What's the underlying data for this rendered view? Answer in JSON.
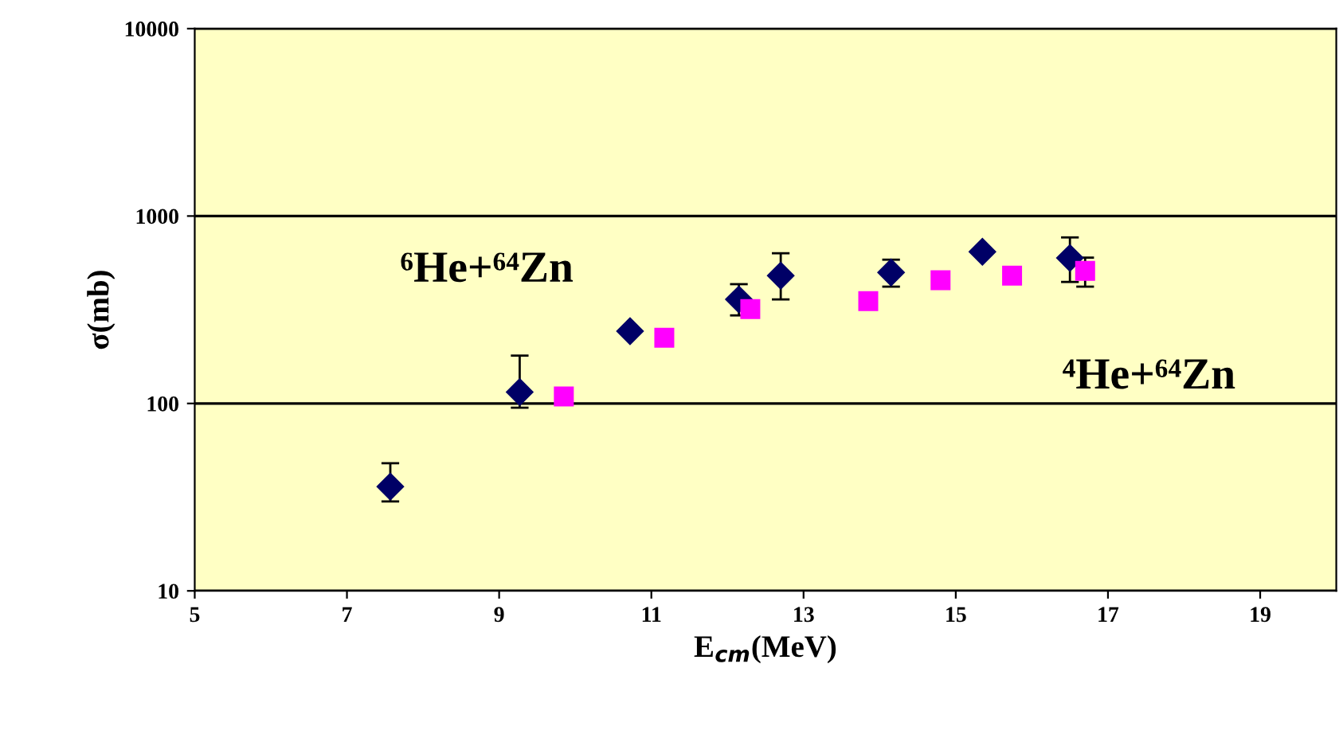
{
  "chart_data": {
    "type": "scatter",
    "xlabel": "E$_{cm}$(MeV)",
    "ylabel": "σ(mb)",
    "xlim": [
      5,
      20
    ],
    "xticks": [
      5,
      7,
      9,
      11,
      13,
      15,
      17,
      19
    ],
    "ylim": [
      10,
      10000
    ],
    "yticks": [
      10,
      100,
      1000,
      10000
    ],
    "log": "y",
    "grid": "y",
    "series": [
      {
        "name": "⁶He+⁶⁴Zn",
        "color": "#000066",
        "marker": "diamond",
        "x": [
          7.57,
          9.27,
          10.72,
          12.15,
          12.7,
          14.15,
          15.35,
          16.5
        ],
        "values": [
          36,
          115,
          243,
          359,
          481,
          500,
          645,
          597
        ],
        "errors": [
          [
            30,
            48
          ],
          [
            95,
            180
          ],
          null,
          [
            295,
            433
          ],
          [
            359,
            633
          ],
          [
            420,
            585
          ],
          null,
          [
            445,
            769
          ]
        ]
      },
      {
        "name": "⁴He+⁶⁴Zn",
        "color": "#ff00ff",
        "marker": "square",
        "x": [
          9.85,
          11.17,
          12.3,
          13.85,
          14.8,
          15.74,
          16.7
        ],
        "values": [
          109,
          224,
          319,
          352,
          454,
          481,
          510
        ],
        "errors": [
          null,
          null,
          null,
          null,
          null,
          null,
          [
            420,
            600
          ]
        ]
      }
    ]
  }
}
